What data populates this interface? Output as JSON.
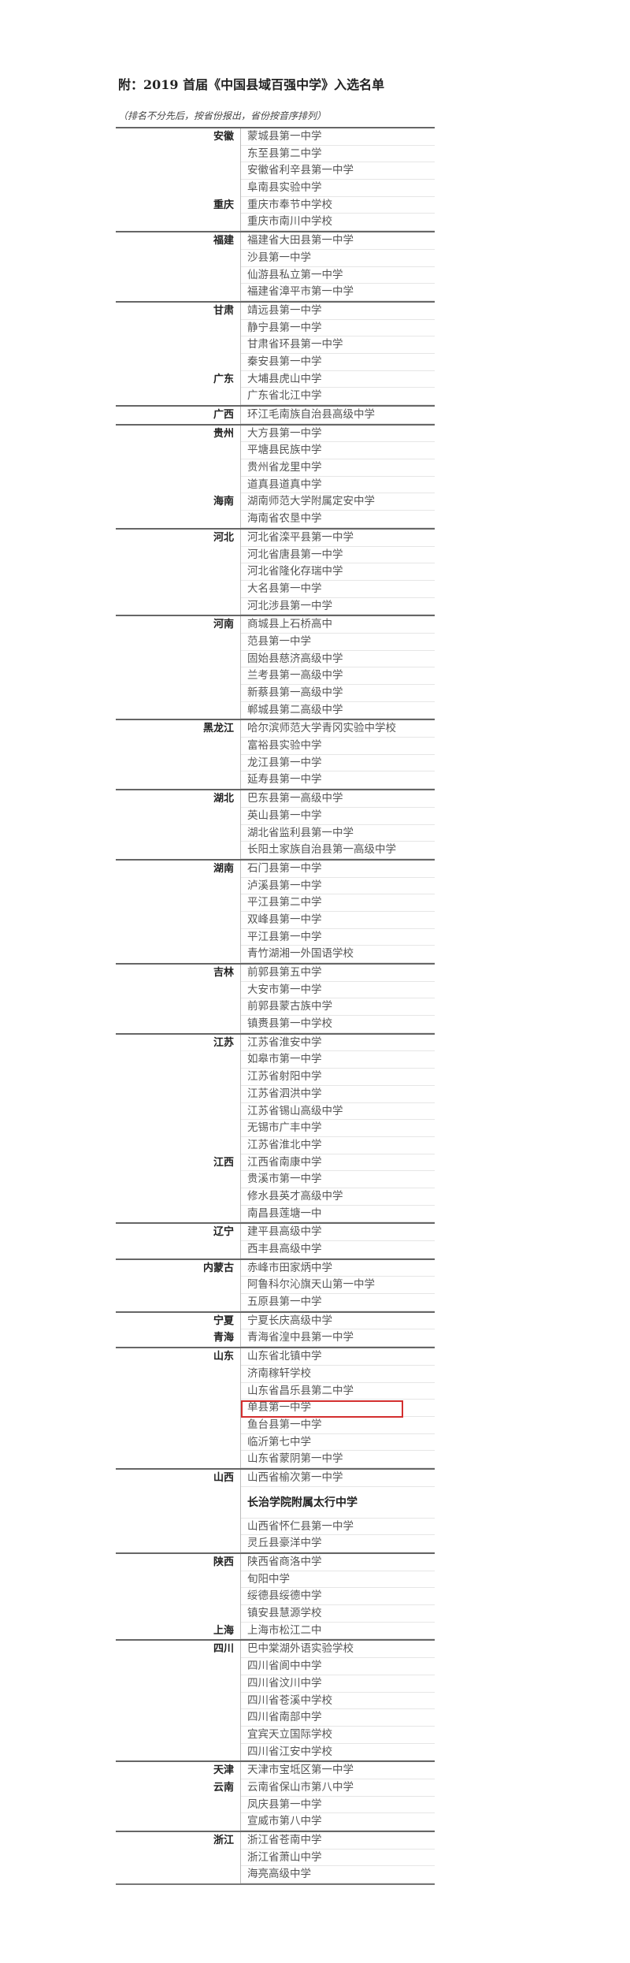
{
  "title": "附：2019 首届《中国县域百强中学》入选名单",
  "note": "（排名不分先后，按省份报出，省份按音序排列）",
  "highlight_color": "#d32f2f",
  "highlighted_school": "单县第一中学",
  "sections": [
    {
      "rows": [
        {
          "province": "安徽",
          "school": "蒙城县第一中学"
        },
        {
          "province": "",
          "school": "东至县第二中学"
        },
        {
          "province": "",
          "school": "安徽省利辛县第一中学"
        },
        {
          "province": "",
          "school": "阜南县实验中学"
        },
        {
          "province": "重庆",
          "school": "重庆市奉节中学校"
        },
        {
          "province": "",
          "school": "重庆市南川中学校"
        }
      ]
    },
    {
      "rows": [
        {
          "province": "福建",
          "school": "福建省大田县第一中学"
        },
        {
          "province": "",
          "school": "沙县第一中学"
        },
        {
          "province": "",
          "school": "仙游县私立第一中学"
        },
        {
          "province": "",
          "school": "福建省漳平市第一中学"
        }
      ]
    },
    {
      "rows": [
        {
          "province": "甘肃",
          "school": "靖远县第一中学"
        },
        {
          "province": "",
          "school": "静宁县第一中学"
        },
        {
          "province": "",
          "school": "甘肃省环县第一中学"
        },
        {
          "province": "",
          "school": "秦安县第一中学"
        },
        {
          "province": "广东",
          "school": "大埔县虎山中学"
        },
        {
          "province": "",
          "school": "广东省北江中学"
        }
      ]
    },
    {
      "rows": [
        {
          "province": "广西",
          "school": "环江毛南族自治县高级中学"
        }
      ]
    },
    {
      "rows": [
        {
          "province": "贵州",
          "school": "大方县第一中学"
        },
        {
          "province": "",
          "school": "平塘县民族中学"
        },
        {
          "province": "",
          "school": "贵州省龙里中学"
        },
        {
          "province": "",
          "school": "道真县道真中学"
        },
        {
          "province": "海南",
          "school": "湖南师范大学附属定安中学"
        },
        {
          "province": "",
          "school": "海南省农垦中学"
        }
      ]
    },
    {
      "rows": [
        {
          "province": "河北",
          "school": "河北省滦平县第一中学"
        },
        {
          "province": "",
          "school": "河北省唐县第一中学"
        },
        {
          "province": "",
          "school": "河北省隆化存瑞中学"
        },
        {
          "province": "",
          "school": "大名县第一中学"
        },
        {
          "province": "",
          "school": "河北涉县第一中学"
        }
      ]
    },
    {
      "rows": [
        {
          "province": "河南",
          "school": "商城县上石桥高中"
        },
        {
          "province": "",
          "school": "范县第一中学"
        },
        {
          "province": "",
          "school": "固始县慈济高级中学"
        },
        {
          "province": "",
          "school": "兰考县第一高级中学"
        },
        {
          "province": "",
          "school": "新蔡县第一高级中学"
        },
        {
          "province": "",
          "school": "郸城县第二高级中学"
        }
      ]
    },
    {
      "rows": [
        {
          "province": "黑龙江",
          "school": "哈尔滨师范大学青冈实验中学校"
        },
        {
          "province": "",
          "school": "富裕县实验中学"
        },
        {
          "province": "",
          "school": "龙江县第一中学"
        },
        {
          "province": "",
          "school": "延寿县第一中学"
        }
      ]
    },
    {
      "rows": [
        {
          "province": "湖北",
          "school": "巴东县第一高级中学"
        },
        {
          "province": "",
          "school": "英山县第一中学"
        },
        {
          "province": "",
          "school": "湖北省监利县第一中学"
        },
        {
          "province": "",
          "school": "长阳土家族自治县第一高级中学"
        }
      ]
    },
    {
      "rows": [
        {
          "province": "湖南",
          "school": "石门县第一中学"
        },
        {
          "province": "",
          "school": "泸溪县第一中学"
        },
        {
          "province": "",
          "school": "平江县第二中学"
        },
        {
          "province": "",
          "school": "双峰县第一中学"
        },
        {
          "province": "",
          "school": "平江县第一中学"
        },
        {
          "province": "",
          "school": "青竹湖湘一外国语学校"
        }
      ]
    },
    {
      "rows": [
        {
          "province": "吉林",
          "school": "前郭县第五中学"
        },
        {
          "province": "",
          "school": "大安市第一中学"
        },
        {
          "province": "",
          "school": "前郭县蒙古族中学"
        },
        {
          "province": "",
          "school": "镇赉县第一中学校"
        }
      ]
    },
    {
      "rows": [
        {
          "province": "江苏",
          "school": "江苏省淮安中学"
        },
        {
          "province": "",
          "school": "如皋市第一中学"
        },
        {
          "province": "",
          "school": "江苏省射阳中学"
        },
        {
          "province": "",
          "school": "江苏省泗洪中学"
        },
        {
          "province": "",
          "school": "江苏省锡山高级中学"
        },
        {
          "province": "",
          "school": "无锡市广丰中学"
        },
        {
          "province": "",
          "school": "江苏省淮北中学"
        },
        {
          "province": "江西",
          "school": "江西省南康中学"
        },
        {
          "province": "",
          "school": "贵溪市第一中学"
        },
        {
          "province": "",
          "school": "修水县英才高级中学"
        },
        {
          "province": "",
          "school": "南昌县莲塘一中"
        }
      ]
    },
    {
      "rows": [
        {
          "province": "辽宁",
          "school": "建平县高级中学"
        },
        {
          "province": "",
          "school": "西丰县高级中学"
        }
      ]
    },
    {
      "rows": [
        {
          "province": "内蒙古",
          "school": "赤峰市田家炳中学"
        },
        {
          "province": "",
          "school": "阿鲁科尔沁旗天山第一中学"
        },
        {
          "province": "",
          "school": "五原县第一中学"
        }
      ]
    },
    {
      "rows": [
        {
          "province": "宁夏",
          "school": "宁夏长庆高级中学"
        },
        {
          "province": "青海",
          "school": "青海省湟中县第一中学"
        }
      ]
    },
    {
      "rows": [
        {
          "province": "山东",
          "school": "山东省北镇中学"
        },
        {
          "province": "",
          "school": "济南稼轩学校"
        },
        {
          "province": "",
          "school": "山东省昌乐县第二中学"
        },
        {
          "province": "",
          "school": "单县第一中学",
          "highlight": true
        },
        {
          "province": "",
          "school": "鱼台县第一中学"
        },
        {
          "province": "",
          "school": "临沂第七中学"
        },
        {
          "province": "",
          "school": "山东省蒙阴第一中学"
        }
      ]
    },
    {
      "rows": [
        {
          "province": "山西",
          "school": "山西省榆次第一中学"
        },
        {
          "province": "",
          "school": "长治学院附属太行中学",
          "tall": true
        },
        {
          "province": "",
          "school": "山西省怀仁县第一中学"
        },
        {
          "province": "",
          "school": "灵丘县豪洋中学"
        }
      ]
    },
    {
      "rows": [
        {
          "province": "陕西",
          "school": "陕西省商洛中学"
        },
        {
          "province": "",
          "school": "旬阳中学"
        },
        {
          "province": "",
          "school": "绥德县绥德中学"
        },
        {
          "province": "",
          "school": "镇安县慧源学校"
        },
        {
          "province": "上海",
          "school": "上海市松江二中"
        }
      ]
    },
    {
      "rows": [
        {
          "province": "四川",
          "school": "巴中棠湖外语实验学校"
        },
        {
          "province": "",
          "school": "四川省阆中中学"
        },
        {
          "province": "",
          "school": "四川省汶川中学"
        },
        {
          "province": "",
          "school": "四川省苍溪中学校"
        },
        {
          "province": "",
          "school": "四川省南部中学"
        },
        {
          "province": "",
          "school": "宜宾天立国际学校"
        },
        {
          "province": "",
          "school": "四川省江安中学校"
        }
      ]
    },
    {
      "rows": [
        {
          "province": "天津",
          "school": "天津市宝坻区第一中学"
        },
        {
          "province": "云南",
          "school": "云南省保山市第八中学"
        },
        {
          "province": "",
          "school": "凤庆县第一中学"
        },
        {
          "province": "",
          "school": "宣威市第八中学"
        }
      ]
    },
    {
      "rows": [
        {
          "province": "浙江",
          "school": "浙江省苍南中学"
        },
        {
          "province": "",
          "school": "浙江省萧山中学"
        },
        {
          "province": "",
          "school": "海亮高级中学"
        }
      ]
    }
  ]
}
